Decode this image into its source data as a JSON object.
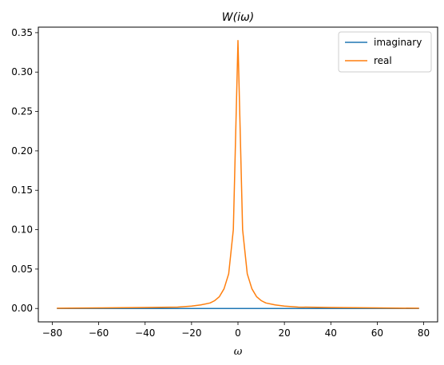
{
  "chart_data": {
    "type": "line",
    "title": "W(iω)",
    "xlabel": "ω",
    "ylabel": "",
    "xlim": [
      -86,
      86
    ],
    "ylim": [
      -0.017,
      0.357
    ],
    "xticks": [
      -80,
      -60,
      -40,
      -20,
      0,
      20,
      40,
      60,
      80
    ],
    "xtick_labels": [
      "−80",
      "−60",
      "−40",
      "−20",
      "0",
      "20",
      "40",
      "60",
      "80"
    ],
    "yticks": [
      0.0,
      0.05,
      0.1,
      0.15,
      0.2,
      0.25,
      0.3,
      0.35
    ],
    "ytick_labels": [
      "0.00",
      "0.05",
      "0.10",
      "0.15",
      "0.20",
      "0.25",
      "0.30",
      "0.35"
    ],
    "grid": false,
    "legend_position": "top-right",
    "series": [
      {
        "name": "imaginary",
        "color": "#1f77b4",
        "x": [
          -78,
          -60,
          -40,
          -20,
          -10,
          -5,
          0,
          5,
          10,
          20,
          40,
          60,
          78
        ],
        "y": [
          0,
          0,
          0,
          0,
          0,
          0,
          0,
          0,
          0,
          0,
          0,
          0,
          0
        ]
      },
      {
        "name": "real",
        "color": "#ff7f0e",
        "x": [
          -78,
          -60,
          -40,
          -26,
          -20,
          -16,
          -12,
          -10,
          -8,
          -6,
          -4,
          -2,
          0,
          2,
          4,
          6,
          8,
          10,
          12,
          16,
          20,
          26,
          40,
          60,
          78
        ],
        "y": [
          0.0003,
          0.0007,
          0.0012,
          0.0018,
          0.003,
          0.0045,
          0.007,
          0.01,
          0.015,
          0.025,
          0.044,
          0.1,
          0.34,
          0.1,
          0.044,
          0.025,
          0.015,
          0.01,
          0.007,
          0.0045,
          0.003,
          0.0018,
          0.0012,
          0.0007,
          0.0003
        ]
      }
    ]
  }
}
